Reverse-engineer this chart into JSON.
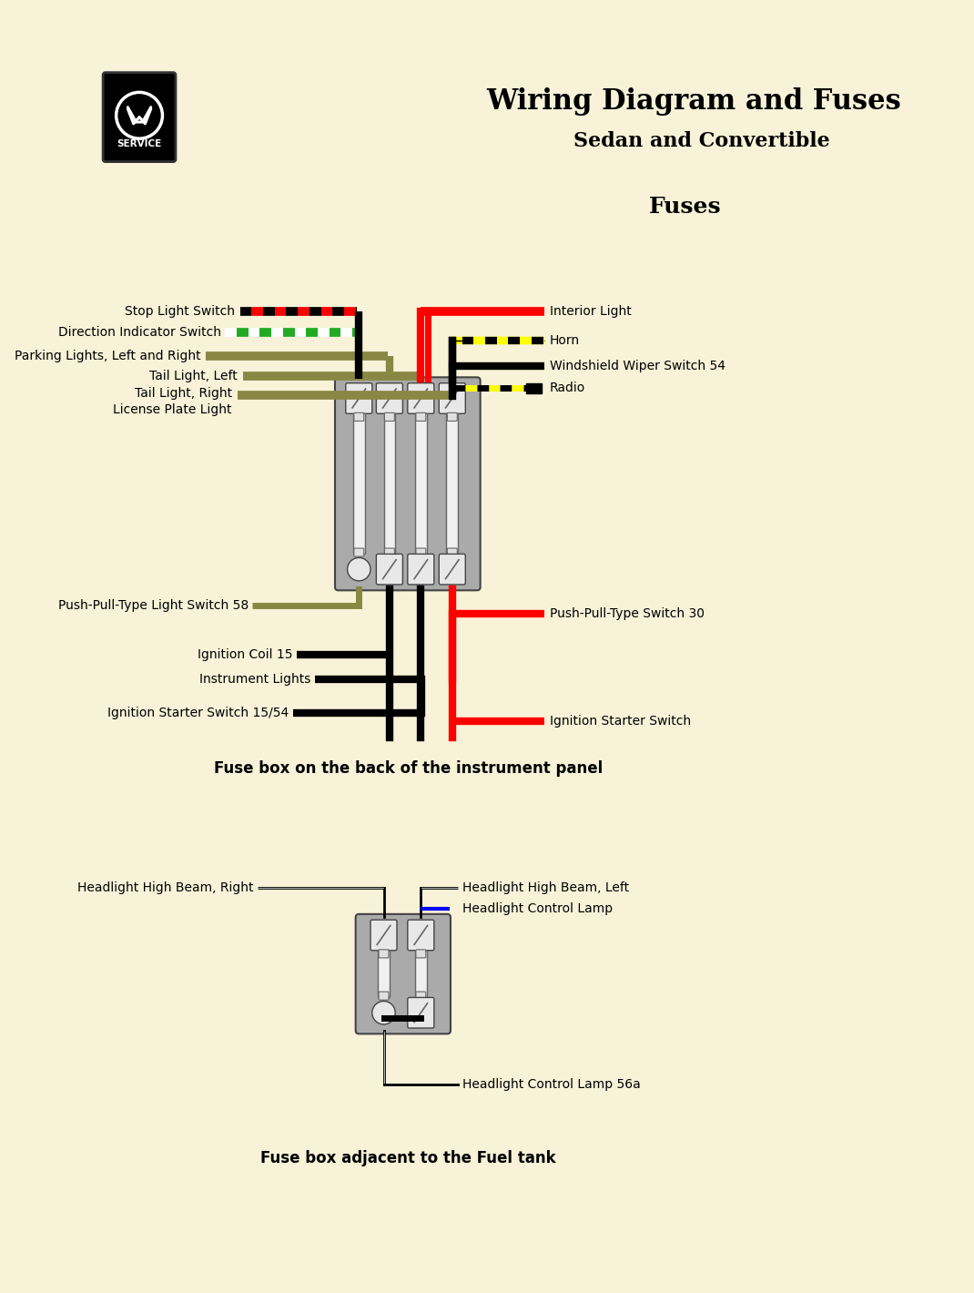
{
  "bg_color": "#f7f2d8",
  "title1": "Wiring Diagram and Fuses",
  "title2": "Sedan and Convertible",
  "fuses_label": "Fuses",
  "left_labels_top": [
    "Stop Light Switch",
    "Direction Indicator Switch",
    "Parking Lights, Left and Right",
    "Tail Light, Left",
    "Tail Light, Right",
    "License Plate Light"
  ],
  "right_labels_top": [
    "Interior Light",
    "Horn",
    "Windshield Wiper Switch 54",
    "Radio"
  ],
  "left_labels_bottom": [
    "Push-Pull-Type Light Switch 58",
    "Ignition Coil 15",
    "Instrument Lights",
    "Ignition Starter Switch 15/54"
  ],
  "right_labels_bottom": [
    "Push-Pull-Type Switch 30",
    "Ignition Starter Switch"
  ],
  "caption1": "Fuse box on the back of the instrument panel",
  "caption2": "Fuse box adjacent to the Fuel tank",
  "headlight_labels_left": [
    "Headlight High Beam, Right"
  ],
  "headlight_labels_right": [
    "Headlight High Beam, Left",
    "Headlight Control Lamp"
  ],
  "headlight_label_bottom": "Headlight Control Lamp 56a"
}
